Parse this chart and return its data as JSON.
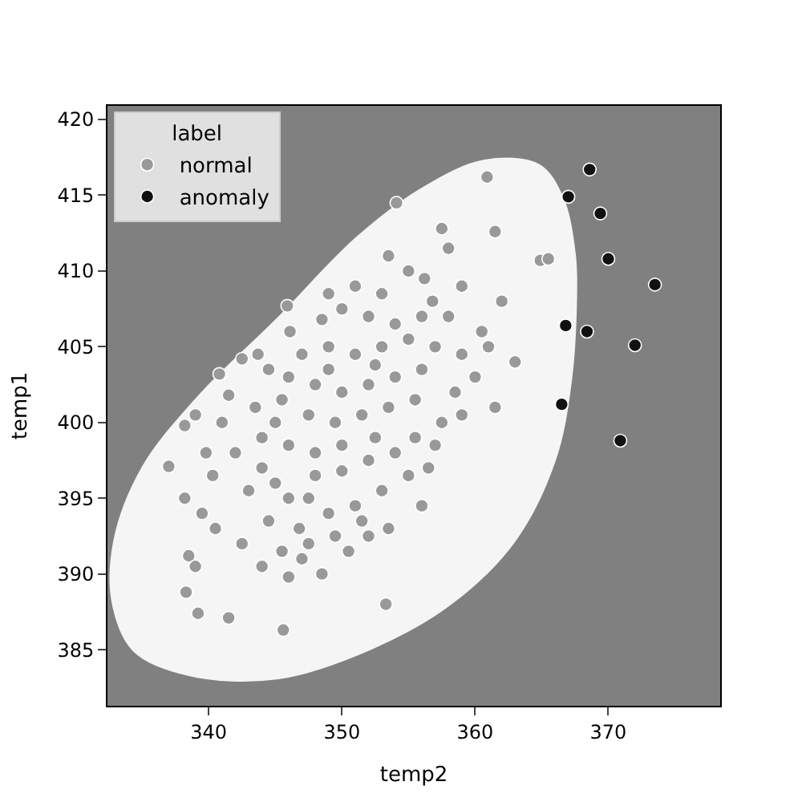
{
  "chart_data": {
    "type": "scatter",
    "xlabel": "temp2",
    "ylabel": "temp1",
    "legend_title": "label",
    "legend": "top left",
    "grid": false,
    "xlim": [
      332.4,
      378.4
    ],
    "xticks": [
      340,
      350,
      360,
      370
    ],
    "ylim": [
      381.3,
      420.9
    ],
    "yticks": [
      385,
      390,
      395,
      400,
      405,
      410,
      415,
      420
    ],
    "series": [
      {
        "type": "area",
        "marker": "none",
        "color": "#f5f5f5",
        "x": [
          367.6,
          367.5,
          366.6,
          364.8,
          360.7,
          356.1,
          351.1,
          345.2,
          339.2,
          335.0,
          332.9,
          332.8,
          334.4,
          338.6,
          345.2,
          352.3,
          358.3,
          363.0,
          366.0,
          367.2,
          367.6
        ],
        "values": [
          408.5,
          411.1,
          414.8,
          417.0,
          417.3,
          415.5,
          412.2,
          406.9,
          401.7,
          397.0,
          392.2,
          388.0,
          384.9,
          383.3,
          383.1,
          385.1,
          388.1,
          392.2,
          397.5,
          402.7,
          408.5
        ]
      },
      {
        "name": "normal",
        "marker": "circle",
        "color": "#999999",
        "x": [
          354.1,
          360.9,
          361.5,
          364.9,
          357.5,
          358.0,
          356.2,
          359.0,
          356.8,
          345.9,
          346.1,
          342.5,
          343.7,
          340.8,
          341.5,
          339.0,
          338.2,
          337.0,
          339.8,
          340.3,
          338.2,
          339.5,
          340.5,
          338.5,
          339.0,
          338.3,
          339.2,
          341.5,
          345.6,
          353.3,
          344.0,
          346.0,
          347.0,
          348.5,
          350.5,
          352.0,
          346.8,
          344.5,
          342.5,
          343.0,
          345.0,
          347.5,
          349.0,
          351.0,
          353.0,
          355.0,
          356.5,
          354.0,
          352.0,
          350.0,
          348.0,
          346.0,
          344.0,
          342.0,
          343.5,
          345.5,
          347.5,
          349.5,
          351.5,
          353.5,
          355.5,
          357.5,
          358.5,
          356.0,
          354.0,
          352.0,
          350.0,
          348.0,
          346.0,
          344.5,
          347.0,
          349.0,
          351.0,
          353.0,
          355.0,
          357.0,
          359.0,
          360.5,
          358.0,
          356.0,
          354.0,
          352.0,
          350.0,
          348.5,
          351.0,
          353.0,
          355.0,
          353.5,
          349.0,
          362.0,
          361.0,
          360.0,
          359.0,
          357.0,
          355.5,
          352.5,
          350.0,
          348.0,
          346.0,
          344.0,
          349.5,
          351.5,
          347.5,
          345.5,
          353.5,
          356.0,
          349.0,
          352.5,
          345.0,
          341.0,
          365.5,
          363.0,
          361.5
        ],
        "values": [
          414.5,
          416.2,
          412.6,
          410.7,
          412.8,
          411.5,
          409.5,
          409.0,
          408.0,
          407.7,
          406.0,
          404.2,
          404.5,
          403.2,
          401.8,
          400.5,
          399.8,
          397.1,
          398.0,
          396.5,
          395.0,
          394.0,
          393.0,
          391.2,
          390.5,
          388.8,
          387.4,
          387.1,
          386.3,
          388.0,
          390.5,
          389.8,
          391.0,
          390.0,
          391.5,
          392.5,
          393.0,
          393.5,
          392.0,
          395.5,
          396.0,
          395.0,
          394.0,
          394.5,
          395.5,
          396.5,
          397.0,
          398.0,
          397.5,
          396.8,
          398.0,
          398.5,
          399.0,
          398.0,
          401.0,
          401.5,
          400.5,
          400.0,
          400.5,
          401.0,
          401.5,
          400.0,
          402.0,
          403.5,
          403.0,
          402.5,
          402.0,
          402.5,
          403.0,
          403.5,
          404.5,
          405.0,
          404.5,
          405.0,
          405.5,
          405.0,
          404.5,
          406.0,
          407.0,
          407.0,
          406.5,
          407.0,
          407.5,
          406.8,
          409.0,
          408.5,
          410.0,
          411.0,
          408.5,
          408.0,
          405.0,
          403.0,
          400.5,
          398.5,
          399.0,
          399.0,
          398.5,
          396.5,
          395.0,
          397.0,
          392.5,
          393.5,
          392.0,
          391.5,
          393.0,
          394.5,
          403.5,
          403.8,
          400.0,
          400.0,
          410.8,
          404.0,
          401.0
        ]
      },
      {
        "name": "anomaly",
        "marker": "circle",
        "color": "#111111",
        "x": [
          368.6,
          367.0,
          369.4,
          370.0,
          373.5,
          366.8,
          368.4,
          372.0,
          366.5,
          370.9
        ],
        "values": [
          416.7,
          414.9,
          413.8,
          410.8,
          409.1,
          406.4,
          406.0,
          405.1,
          401.2,
          398.8
        ]
      }
    ]
  }
}
